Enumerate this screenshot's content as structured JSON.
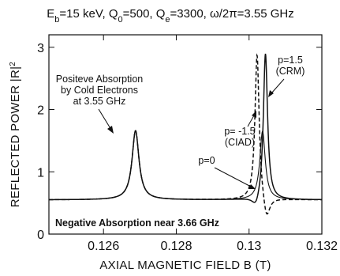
{
  "chart_data": {
    "type": "line",
    "title_parts": {
      "eb_main": "E",
      "eb_sub": "b",
      "eb_val": "=15 keV, ",
      "q0_main": "Q",
      "q0_sub": "0",
      "q0_val": "=500, ",
      "qe_main": "Q",
      "qe_sub": "e",
      "qe_val": "=3300, ",
      "omega": "ω/2π=3.55 GHz"
    },
    "xlabel": "AXIAL MAGNETIC FIELD B (T)",
    "ylabel_main": "REFLECTED POWER  |R|",
    "ylabel_sup": "2",
    "xlim": [
      0.1245,
      0.132
    ],
    "ylim": [
      0,
      3.2
    ],
    "x_ticks": [
      {
        "value": 0.126,
        "label": "0.126"
      },
      {
        "value": 0.128,
        "label": "0.128"
      },
      {
        "value": 0.13,
        "label": "0.13"
      },
      {
        "value": 0.132,
        "label": "0.132"
      }
    ],
    "y_ticks": [
      {
        "value": 0,
        "label": "0"
      },
      {
        "value": 1,
        "label": "1"
      },
      {
        "value": 2,
        "label": "2"
      },
      {
        "value": 3,
        "label": "3"
      }
    ],
    "baseline": 0.55,
    "common_peak": {
      "x0": 0.12688,
      "amplitude": 1.11,
      "width": 0.000115
    },
    "series": [
      {
        "name": "p=0",
        "style": "solid-thin",
        "features": [
          {
            "x0": 0.13037,
            "amplitude": 1.1,
            "width": 9e-05
          }
        ]
      },
      {
        "name": "p= -1.5",
        "style": "dashed",
        "features": [
          {
            "x0": 0.13022,
            "amplitude": 2.38,
            "width": 7e-05
          },
          {
            "x0": 0.13048,
            "amplitude": -0.38,
            "width": 0.00011
          }
        ]
      },
      {
        "name": "p=1.5",
        "style": "solid",
        "features": [
          {
            "x0": 0.13019,
            "amplitude": -0.18,
            "width": 0.00013
          },
          {
            "x0": 0.13045,
            "amplitude": 2.38,
            "width": 7e-05
          }
        ]
      }
    ],
    "annotations": {
      "positive": [
        "Positeve Absorption",
        "by Cold Electrons",
        "at 3.55 GHz"
      ],
      "negative": "Negative Absorption near 3.66 GHz",
      "p15": [
        "p=1.5",
        "(CRM)"
      ],
      "pm15": [
        "p= -1.5",
        "(CIAD)"
      ],
      "p0": "p=0"
    },
    "grid": false,
    "legend": "none"
  }
}
